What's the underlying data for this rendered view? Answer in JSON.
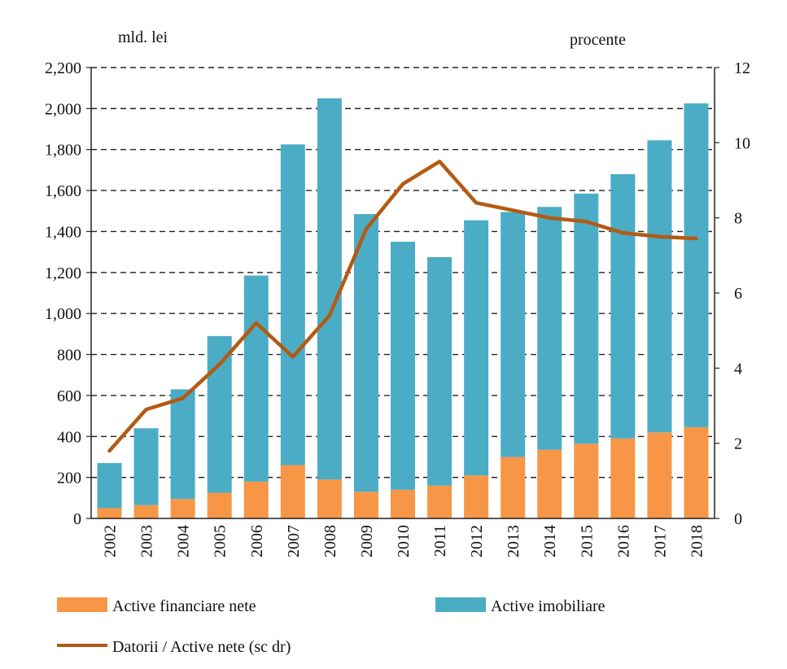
{
  "chart_data": {
    "type": "bar",
    "stacked": true,
    "left_axis_unit": "mld. lei",
    "right_axis_unit": "procente",
    "categories": [
      "2002",
      "2003",
      "2004",
      "2005",
      "2006",
      "2007",
      "2008",
      "2009",
      "2010",
      "2011",
      "2012",
      "2013",
      "2014",
      "2015",
      "2016",
      "2017",
      "2018"
    ],
    "series": [
      {
        "name": "Active financiare nete",
        "axis": "left",
        "kind": "bar",
        "color": "#f79646",
        "values": [
          50,
          65,
          95,
          125,
          180,
          260,
          190,
          130,
          140,
          160,
          210,
          300,
          335,
          365,
          390,
          420,
          445
        ]
      },
      {
        "name": "Active imobiliare",
        "axis": "left",
        "kind": "bar",
        "color": "#4bacc6",
        "values": [
          220,
          375,
          535,
          765,
          1005,
          1565,
          1860,
          1355,
          1210,
          1115,
          1245,
          1195,
          1185,
          1220,
          1290,
          1425,
          1580
        ]
      },
      {
        "name": "Datorii / Active nete (sc dr)",
        "axis": "right",
        "kind": "line",
        "color": "#b35a14",
        "values": [
          1.8,
          2.9,
          3.2,
          4.1,
          5.2,
          4.3,
          5.4,
          7.7,
          8.9,
          9.5,
          8.4,
          8.2,
          8.0,
          7.9,
          7.6,
          7.5,
          7.45
        ]
      }
    ],
    "left_axis": {
      "min": 0,
      "max": 2200,
      "step": 200,
      "tick_labels": [
        "0",
        "200",
        "400",
        "600",
        "800",
        "1,000",
        "1,200",
        "1,400",
        "1,600",
        "1,800",
        "2,000",
        "2,200"
      ]
    },
    "right_axis": {
      "min": 0,
      "max": 12,
      "step": 2,
      "tick_labels": [
        "0",
        "2",
        "4",
        "6",
        "8",
        "10",
        "12"
      ]
    },
    "gridlines": "horizontal-dashed",
    "legend_position": "bottom"
  }
}
